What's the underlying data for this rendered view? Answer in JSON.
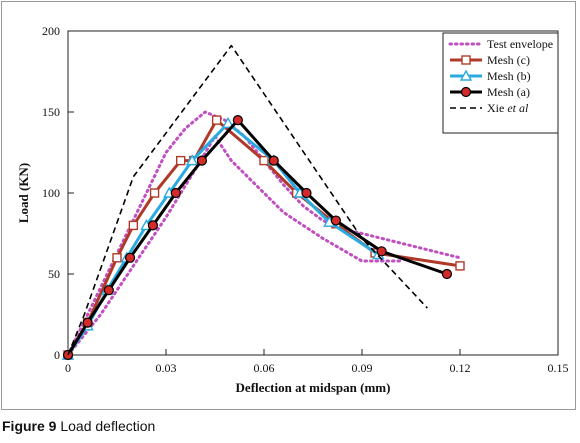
{
  "caption": {
    "label": "Figure 9",
    "text": "Load deflection"
  },
  "chart_data": {
    "type": "line",
    "title": "",
    "xlabel": "Deflection at midspan (mm)",
    "ylabel": "Load (KN)",
    "xlim": [
      0,
      0.15
    ],
    "ylim": [
      0,
      200
    ],
    "xticks": [
      0,
      0.03,
      0.06,
      0.09,
      0.12,
      0.15
    ],
    "xtick_labels": [
      "0",
      "0.03",
      "0.06",
      "0.09",
      "0.12",
      "0.15"
    ],
    "yticks": [
      0,
      50,
      100,
      150,
      200
    ],
    "ytick_labels": [
      "0",
      "50",
      "100",
      "150",
      "200"
    ],
    "grid": false,
    "legend_position": "top-right",
    "series": [
      {
        "name": "Test envelope",
        "color": "#c04fc0",
        "style": "dotted",
        "marker": "none",
        "paths": [
          {
            "x": [
              0,
              0.006,
              0.012,
              0.018,
              0.024,
              0.03,
              0.036,
              0.042,
              0.048,
              0.054,
              0.06,
              0.066,
              0.072,
              0.078,
              0.084,
              0.09,
              0.096,
              0.102,
              0.108,
              0.114,
              0.12
            ],
            "y": [
              0,
              25,
              50,
              75,
              100,
              125,
              140,
              150,
              145,
              135,
              120,
              105,
              92,
              83,
              78,
              75,
              72,
              69,
              66,
              63,
              60
            ]
          },
          {
            "x": [
              0,
              0.01,
              0.02,
              0.03,
              0.04,
              0.045,
              0.05,
              0.055,
              0.06,
              0.066,
              0.072,
              0.078,
              0.084,
              0.09,
              0.096,
              0.102
            ],
            "y": [
              0,
              25,
              55,
              85,
              118,
              135,
              120,
              110,
              100,
              88,
              80,
              72,
              65,
              58,
              58,
              58
            ]
          }
        ]
      },
      {
        "name": "Mesh (c)",
        "color": "#b03a28",
        "style": "solid",
        "marker": "square",
        "paths": [
          {
            "x": [
              0,
              0.006,
              0.015,
              0.02,
              0.0265,
              0.0345,
              0.0385,
              0.0455,
              0.06,
              0.07,
              0.082,
              0.094,
              0.12
            ],
            "y": [
              0,
              20,
              60,
              80,
              100,
              120,
              120,
              145,
              120,
              100,
              81,
              63,
              55
            ]
          }
        ]
      },
      {
        "name": "Mesh (b)",
        "color": "#29aae1",
        "style": "solid",
        "marker": "triangle",
        "paths": [
          {
            "x": [
              0,
              0.006,
              0.012,
              0.018,
              0.024,
              0.031,
              0.038,
              0.049,
              0.063,
              0.071,
              0.08,
              0.095
            ],
            "y": [
              0,
              18,
              40,
              60,
              80,
              100,
              120,
              143,
              120,
              100,
              82,
              62
            ]
          }
        ]
      },
      {
        "name": "Mesh (a)",
        "color": "#000000",
        "style": "solid",
        "marker": "circle",
        "paths": [
          {
            "x": [
              0,
              0.006,
              0.0125,
              0.019,
              0.026,
              0.033,
              0.041,
              0.052,
              0.063,
              0.073,
              0.082,
              0.096,
              0.116
            ],
            "y": [
              0,
              20,
              40,
              60,
              80,
              100,
              120,
              145,
              120,
              100,
              83,
              64,
              50
            ]
          }
        ]
      },
      {
        "name": "Xie et al",
        "name_parts": [
          "Xie ",
          "et al"
        ],
        "color": "#000000",
        "style": "dashed",
        "marker": "none",
        "paths": [
          {
            "x": [
              0,
              0.005,
              0.02,
              0.05,
              0.09,
              0.11
            ],
            "y": [
              0,
              25,
              110,
              191,
              72,
              29
            ]
          }
        ]
      }
    ]
  }
}
